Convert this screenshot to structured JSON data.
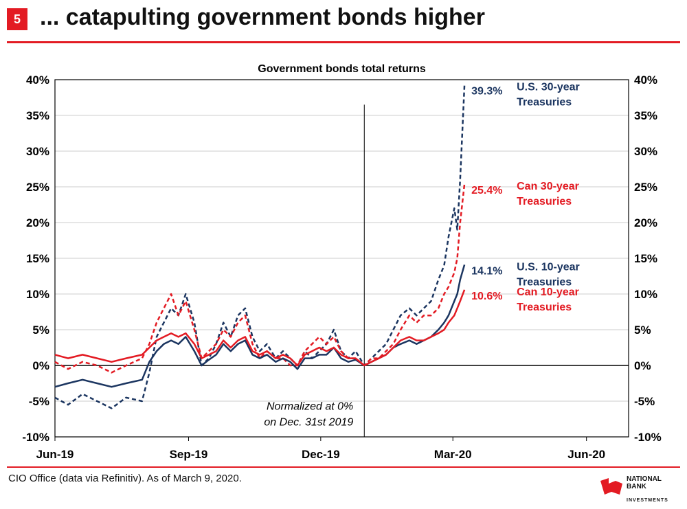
{
  "header": {
    "slide_number": "5",
    "title": "... catapulting government bonds higher"
  },
  "footer": {
    "source": "CIO Office (data via Refinitiv). As of March 9, 2020.",
    "logo_line1": "NATIONAL",
    "logo_line2": "BANK",
    "logo_line3": "INVESTMENTS"
  },
  "colors": {
    "accent": "#e31b23",
    "navy": "#1b3560",
    "red": "#e31b23",
    "grid": "#cccccc"
  },
  "chart_data": {
    "type": "line",
    "title": "Government bonds total returns",
    "ylim": [
      -10,
      40
    ],
    "y_ticks": [
      "40%",
      "35%",
      "30%",
      "25%",
      "20%",
      "15%",
      "10%",
      "5%",
      "0%",
      "-5%",
      "-10%"
    ],
    "x_ticks": [
      "Jun-19",
      "Sep-19",
      "Dec-19",
      "Mar-20",
      "Jun-20"
    ],
    "x_tick_dates": [
      "2019-06-01",
      "2019-09-01",
      "2019-12-01",
      "2020-03-01",
      "2020-06-01"
    ],
    "x_range": [
      "2019-06-01",
      "2020-06-30"
    ],
    "grid": true,
    "vertical_marker_date": "2019-12-31",
    "annotation": [
      "Normalized at 0%",
      "on Dec. 31st 2019"
    ],
    "series": [
      {
        "name": "U.S. 30-year Treasuries",
        "dashed": true,
        "color": "#1b3560",
        "end_label": "39.3%",
        "label_lines": [
          "U.S. 30-year",
          "Treasuries"
        ],
        "x": [
          "2019-06-01",
          "2019-06-10",
          "2019-06-20",
          "2019-06-30",
          "2019-07-10",
          "2019-07-20",
          "2019-07-31",
          "2019-08-05",
          "2019-08-10",
          "2019-08-15",
          "2019-08-20",
          "2019-08-25",
          "2019-08-30",
          "2019-09-05",
          "2019-09-10",
          "2019-09-15",
          "2019-09-20",
          "2019-09-25",
          "2019-09-30",
          "2019-10-05",
          "2019-10-10",
          "2019-10-15",
          "2019-10-20",
          "2019-10-25",
          "2019-10-31",
          "2019-11-05",
          "2019-11-10",
          "2019-11-15",
          "2019-11-20",
          "2019-11-25",
          "2019-11-30",
          "2019-12-05",
          "2019-12-10",
          "2019-12-15",
          "2019-12-20",
          "2019-12-25",
          "2019-12-31",
          "2020-01-05",
          "2020-01-10",
          "2020-01-15",
          "2020-01-20",
          "2020-01-25",
          "2020-01-31",
          "2020-02-05",
          "2020-02-10",
          "2020-02-15",
          "2020-02-20",
          "2020-02-24",
          "2020-02-27",
          "2020-03-02",
          "2020-03-04",
          "2020-03-06",
          "2020-03-09"
        ],
        "values": [
          -4.5,
          -5.5,
          -4,
          -5,
          -6,
          -4.5,
          -5,
          -1,
          4,
          6,
          8,
          7,
          10,
          6,
          0,
          1,
          3,
          6,
          4,
          7,
          8,
          4,
          2,
          3,
          1,
          2,
          1,
          0,
          2,
          1,
          2,
          3,
          5,
          2,
          1,
          2,
          0,
          1,
          2,
          3,
          5,
          7,
          8,
          7,
          8,
          9,
          12,
          14,
          18,
          22,
          19,
          26,
          39.3
        ]
      },
      {
        "name": "Can 30-year Treasuries",
        "dashed": true,
        "color": "#e31b23",
        "end_label": "25.4%",
        "label_lines": [
          "Can 30-year",
          "Treasuries"
        ],
        "x": [
          "2019-06-01",
          "2019-06-10",
          "2019-06-20",
          "2019-06-30",
          "2019-07-10",
          "2019-07-20",
          "2019-07-31",
          "2019-08-05",
          "2019-08-10",
          "2019-08-15",
          "2019-08-20",
          "2019-08-25",
          "2019-08-30",
          "2019-09-05",
          "2019-09-10",
          "2019-09-15",
          "2019-09-20",
          "2019-09-25",
          "2019-09-30",
          "2019-10-05",
          "2019-10-10",
          "2019-10-15",
          "2019-10-20",
          "2019-10-25",
          "2019-10-31",
          "2019-11-05",
          "2019-11-10",
          "2019-11-15",
          "2019-11-20",
          "2019-11-25",
          "2019-11-30",
          "2019-12-05",
          "2019-12-10",
          "2019-12-15",
          "2019-12-20",
          "2019-12-25",
          "2019-12-31",
          "2020-01-05",
          "2020-01-10",
          "2020-01-15",
          "2020-01-20",
          "2020-01-25",
          "2020-01-31",
          "2020-02-05",
          "2020-02-10",
          "2020-02-15",
          "2020-02-20",
          "2020-02-24",
          "2020-02-27",
          "2020-03-02",
          "2020-03-04",
          "2020-03-06",
          "2020-03-09"
        ],
        "values": [
          0.5,
          -0.5,
          0.5,
          0,
          -1,
          0,
          1,
          3,
          6,
          8,
          10,
          7,
          9,
          5,
          1,
          2,
          3,
          5,
          4,
          6,
          7,
          3,
          1,
          2,
          1,
          1,
          0,
          0,
          2,
          3,
          4,
          3,
          4,
          2,
          1,
          1,
          0,
          1,
          1,
          2,
          3,
          5,
          7,
          6,
          7,
          7,
          8,
          10,
          11,
          13,
          15,
          20,
          25.4
        ]
      },
      {
        "name": "U.S. 10-year Treasuries",
        "dashed": false,
        "color": "#1b3560",
        "end_label": "14.1%",
        "label_lines": [
          "U.S. 10-year",
          "Treasuries"
        ],
        "x": [
          "2019-06-01",
          "2019-06-10",
          "2019-06-20",
          "2019-06-30",
          "2019-07-10",
          "2019-07-20",
          "2019-07-31",
          "2019-08-05",
          "2019-08-10",
          "2019-08-15",
          "2019-08-20",
          "2019-08-25",
          "2019-08-30",
          "2019-09-05",
          "2019-09-10",
          "2019-09-15",
          "2019-09-20",
          "2019-09-25",
          "2019-09-30",
          "2019-10-05",
          "2019-10-10",
          "2019-10-15",
          "2019-10-20",
          "2019-10-25",
          "2019-10-31",
          "2019-11-05",
          "2019-11-10",
          "2019-11-15",
          "2019-11-20",
          "2019-11-25",
          "2019-11-30",
          "2019-12-05",
          "2019-12-10",
          "2019-12-15",
          "2019-12-20",
          "2019-12-25",
          "2019-12-31",
          "2020-01-05",
          "2020-01-10",
          "2020-01-15",
          "2020-01-20",
          "2020-01-25",
          "2020-01-31",
          "2020-02-05",
          "2020-02-10",
          "2020-02-15",
          "2020-02-20",
          "2020-02-24",
          "2020-02-27",
          "2020-03-02",
          "2020-03-04",
          "2020-03-06",
          "2020-03-09"
        ],
        "values": [
          -3,
          -2.5,
          -2,
          -2.5,
          -3,
          -2.5,
          -2,
          0.5,
          2,
          3,
          3.5,
          3,
          4,
          2,
          0,
          0.8,
          1.5,
          3,
          2,
          3,
          3.5,
          1.5,
          1,
          1.5,
          0.5,
          1,
          0.5,
          -0.5,
          1,
          1,
          1.5,
          1.5,
          2.5,
          1,
          0.5,
          0.8,
          0,
          0.5,
          1,
          1.5,
          2.5,
          3,
          3.5,
          3,
          3.5,
          4,
          5,
          6,
          7,
          9,
          10,
          12,
          14.1
        ]
      },
      {
        "name": "Can 10-year Treasuries",
        "dashed": false,
        "color": "#e31b23",
        "end_label": "10.6%",
        "label_lines": [
          "Can 10-year",
          "Treasuries"
        ],
        "x": [
          "2019-06-01",
          "2019-06-10",
          "2019-06-20",
          "2019-06-30",
          "2019-07-10",
          "2019-07-20",
          "2019-07-31",
          "2019-08-05",
          "2019-08-10",
          "2019-08-15",
          "2019-08-20",
          "2019-08-25",
          "2019-08-30",
          "2019-09-05",
          "2019-09-10",
          "2019-09-15",
          "2019-09-20",
          "2019-09-25",
          "2019-09-30",
          "2019-10-05",
          "2019-10-10",
          "2019-10-15",
          "2019-10-20",
          "2019-10-25",
          "2019-10-31",
          "2019-11-05",
          "2019-11-10",
          "2019-11-15",
          "2019-11-20",
          "2019-11-25",
          "2019-11-30",
          "2019-12-05",
          "2019-12-10",
          "2019-12-15",
          "2019-12-20",
          "2019-12-25",
          "2019-12-31",
          "2020-01-05",
          "2020-01-10",
          "2020-01-15",
          "2020-01-20",
          "2020-01-25",
          "2020-01-31",
          "2020-02-05",
          "2020-02-10",
          "2020-02-15",
          "2020-02-20",
          "2020-02-24",
          "2020-02-27",
          "2020-03-02",
          "2020-03-04",
          "2020-03-06",
          "2020-03-09"
        ],
        "values": [
          1.5,
          1,
          1.5,
          1,
          0.5,
          1,
          1.5,
          2.5,
          3.5,
          4,
          4.5,
          4,
          4.5,
          3,
          1,
          1.5,
          2,
          3.5,
          2.5,
          3.5,
          4,
          2,
          1.5,
          2,
          1,
          1.5,
          1,
          0,
          1.5,
          2,
          2.5,
          2,
          2.5,
          1.5,
          1,
          1,
          0,
          0.5,
          1,
          1.5,
          2.5,
          3.5,
          4,
          3.5,
          3.5,
          4,
          4.5,
          5,
          6,
          7,
          8,
          9,
          10.6
        ]
      }
    ]
  }
}
